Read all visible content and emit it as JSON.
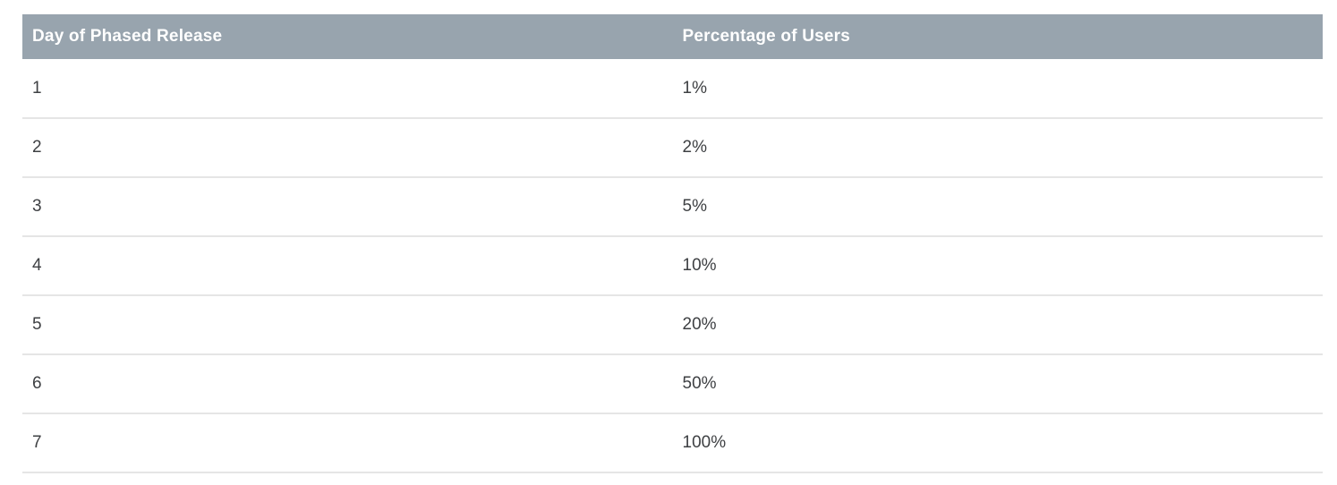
{
  "chart_data": {
    "type": "table",
    "columns": [
      "Day of Phased Release",
      "Percentage of Users"
    ],
    "rows": [
      [
        "1",
        "1%"
      ],
      [
        "2",
        "2%"
      ],
      [
        "3",
        "5%"
      ],
      [
        "4",
        "10%"
      ],
      [
        "5",
        "20%"
      ],
      [
        "6",
        "50%"
      ],
      [
        "7",
        "100%"
      ]
    ]
  },
  "colors": {
    "header_background": "#98a4ae",
    "header_text": "#ffffff",
    "body_text": "#3e4043",
    "row_border": "#e5e5e5",
    "page_background": "#ffffff"
  }
}
